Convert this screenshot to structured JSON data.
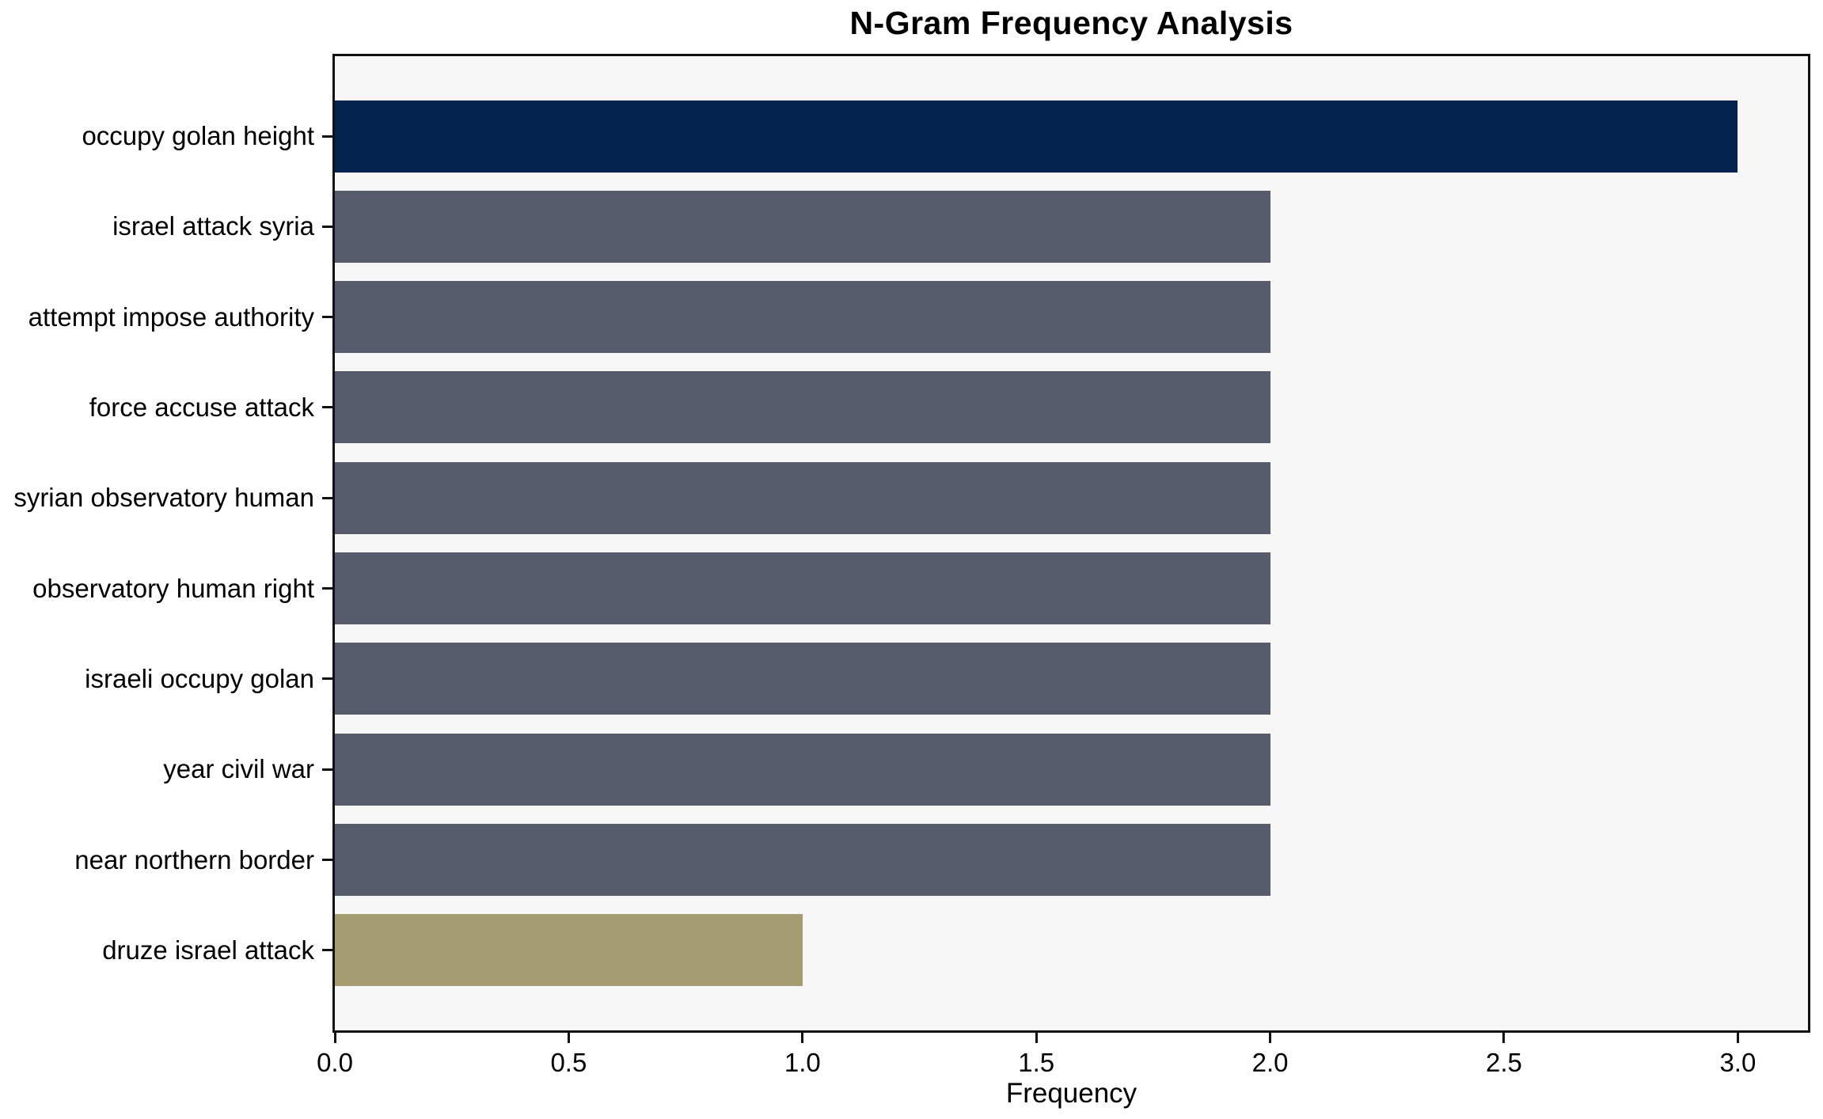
{
  "chart_data": {
    "type": "bar",
    "orientation": "horizontal",
    "title": "N-Gram Frequency Analysis",
    "xlabel": "Frequency",
    "ylabel": "",
    "categories": [
      "occupy golan height",
      "israel attack syria",
      "attempt impose authority",
      "force accuse attack",
      "syrian observatory human",
      "observatory human right",
      "israeli occupy golan",
      "year civil war",
      "near northern border",
      "druze israel attack"
    ],
    "values": [
      3,
      2,
      2,
      2,
      2,
      2,
      2,
      2,
      2,
      1
    ],
    "bar_colors": [
      "#02234e",
      "#565c6b",
      "#565c6b",
      "#565c6b",
      "#565c6b",
      "#565c6b",
      "#565c6b",
      "#565c6b",
      "#565c6b",
      "#a69c72"
    ],
    "xticks": [
      0.0,
      0.5,
      1.0,
      1.5,
      2.0,
      2.5,
      3.0
    ],
    "xtick_labels": [
      "0.0",
      "0.5",
      "1.0",
      "1.5",
      "2.0",
      "2.5",
      "3.0"
    ],
    "xlim": [
      0,
      3.15
    ],
    "grid": false,
    "legend": null,
    "plot_bg_color": "#f7f7f7",
    "frame_color": "#111111",
    "highlight_color": "#02234e",
    "base_color": "#565c6b",
    "min_color": "#a69c72"
  }
}
